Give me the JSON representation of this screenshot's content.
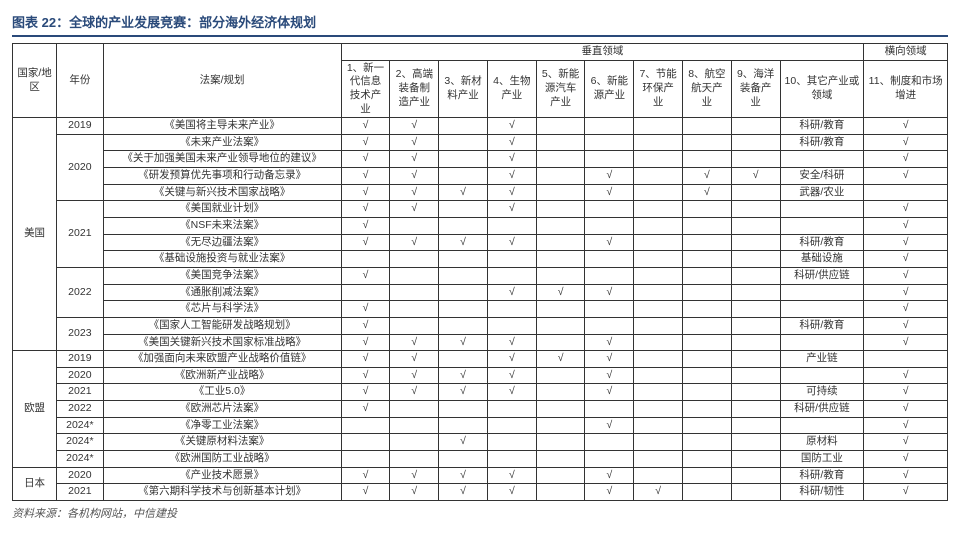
{
  "title": "图表 22：全球的产业发展竞赛：部分海外经济体规划",
  "header": {
    "region": "国家/地区",
    "year": "年份",
    "plan": "法案/规划",
    "vertical": "垂直领域",
    "horizontal": "横向领域",
    "cols": [
      "1、新一代信息技术产业",
      "2、高端装备制造产业",
      "3、新材料产业",
      "4、生物产业",
      "5、新能源汽车产业",
      "6、新能源产业",
      "7、节能环保产业",
      "8、航空航天产业",
      "9、海洋装备产业",
      "10、其它产业或领域",
      "11、制度和市场增进"
    ]
  },
  "check": "√",
  "regions": [
    {
      "name": "美国",
      "years": [
        {
          "year": "2019",
          "rows": [
            {
              "plan": "《美国将主导未来产业》",
              "v": [
                1,
                1,
                0,
                1,
                0,
                0,
                0,
                0,
                0,
                "科研/教育",
                1
              ]
            }
          ]
        },
        {
          "year": "2020",
          "rows": [
            {
              "plan": "《未来产业法案》",
              "v": [
                1,
                1,
                0,
                1,
                0,
                0,
                0,
                0,
                0,
                "科研/教育",
                1
              ]
            },
            {
              "plan": "《关于加强美国未来产业领导地位的建议》",
              "v": [
                1,
                1,
                0,
                1,
                0,
                0,
                0,
                0,
                0,
                "",
                1
              ]
            },
            {
              "plan": "《研发预算优先事项和行动备忘录》",
              "v": [
                1,
                1,
                0,
                1,
                0,
                1,
                0,
                1,
                1,
                "安全/科研",
                1
              ]
            },
            {
              "plan": "《关键与新兴技术国家战略》",
              "v": [
                1,
                1,
                1,
                1,
                0,
                1,
                0,
                1,
                0,
                "武器/农业",
                0
              ]
            }
          ]
        },
        {
          "year": "2021",
          "rows": [
            {
              "plan": "《美国就业计划》",
              "v": [
                1,
                1,
                0,
                1,
                0,
                0,
                0,
                0,
                0,
                "",
                1
              ]
            },
            {
              "plan": "《NSF未来法案》",
              "v": [
                1,
                0,
                0,
                0,
                0,
                0,
                0,
                0,
                0,
                "",
                1
              ]
            },
            {
              "plan": "《无尽边疆法案》",
              "v": [
                1,
                1,
                1,
                1,
                0,
                1,
                0,
                0,
                0,
                "科研/教育",
                1
              ]
            },
            {
              "plan": "《基础设施投资与就业法案》",
              "v": [
                0,
                0,
                0,
                0,
                0,
                0,
                0,
                0,
                0,
                "基础设施",
                1
              ]
            }
          ]
        },
        {
          "year": "2022",
          "rows": [
            {
              "plan": "《美国竞争法案》",
              "v": [
                1,
                0,
                0,
                0,
                0,
                0,
                0,
                0,
                0,
                "科研/供应链",
                1
              ]
            },
            {
              "plan": "《通胀削减法案》",
              "v": [
                0,
                0,
                0,
                1,
                1,
                1,
                0,
                0,
                0,
                "",
                1
              ]
            },
            {
              "plan": "《芯片与科学法》",
              "v": [
                1,
                0,
                0,
                0,
                0,
                0,
                0,
                0,
                0,
                "",
                1
              ]
            }
          ]
        },
        {
          "year": "2023",
          "rows": [
            {
              "plan": "《国家人工智能研发战略规划》",
              "v": [
                1,
                0,
                0,
                0,
                0,
                0,
                0,
                0,
                0,
                "科研/教育",
                1
              ]
            },
            {
              "plan": "《美国关键新兴技术国家标准战略》",
              "v": [
                1,
                1,
                1,
                1,
                0,
                1,
                0,
                0,
                0,
                "",
                1
              ]
            }
          ]
        }
      ]
    },
    {
      "name": "欧盟",
      "years": [
        {
          "year": "2019",
          "rows": [
            {
              "plan": "《加强面向未来欧盟产业战略价值链》",
              "v": [
                1,
                1,
                0,
                1,
                1,
                1,
                0,
                0,
                0,
                "产业链",
                0
              ]
            }
          ]
        },
        {
          "year": "2020",
          "rows": [
            {
              "plan": "《欧洲新产业战略》",
              "v": [
                1,
                1,
                1,
                1,
                0,
                1,
                0,
                0,
                0,
                "",
                1
              ]
            }
          ]
        },
        {
          "year": "2021",
          "rows": [
            {
              "plan": "《工业5.0》",
              "v": [
                1,
                1,
                1,
                1,
                0,
                1,
                0,
                0,
                0,
                "可持续",
                1
              ]
            }
          ]
        },
        {
          "year": "2022",
          "rows": [
            {
              "plan": "《欧洲芯片法案》",
              "v": [
                1,
                0,
                0,
                0,
                0,
                0,
                0,
                0,
                0,
                "科研/供应链",
                1
              ]
            }
          ]
        },
        {
          "year": "2024*",
          "rows": [
            {
              "plan": "《净零工业法案》",
              "v": [
                0,
                0,
                0,
                0,
                0,
                1,
                0,
                0,
                0,
                "",
                1
              ]
            }
          ]
        },
        {
          "year": "2024*",
          "rows": [
            {
              "plan": "《关键原材料法案》",
              "v": [
                0,
                0,
                1,
                0,
                0,
                0,
                0,
                0,
                0,
                "原材料",
                1
              ]
            }
          ]
        },
        {
          "year": "2024*",
          "rows": [
            {
              "plan": "《欧洲国防工业战略》",
              "v": [
                0,
                0,
                0,
                0,
                0,
                0,
                0,
                0,
                0,
                "国防工业",
                1
              ]
            }
          ]
        }
      ]
    },
    {
      "name": "日本",
      "years": [
        {
          "year": "2020",
          "rows": [
            {
              "plan": "《产业技术愿景》",
              "v": [
                1,
                1,
                1,
                1,
                0,
                1,
                0,
                0,
                0,
                "科研/教育",
                1
              ]
            }
          ]
        },
        {
          "year": "2021",
          "rows": [
            {
              "plan": "《第六期科学技术与创新基本计划》",
              "v": [
                1,
                1,
                1,
                1,
                0,
                1,
                1,
                0,
                0,
                "科研/韧性",
                1
              ]
            }
          ]
        }
      ]
    }
  ],
  "footnote": "资料来源：各机构网站，中信建投",
  "styling": {
    "title_color": "#2a4a7a",
    "border_color": "#333333",
    "font_family": "Microsoft YaHei",
    "title_fontsize": 13,
    "cell_fontsize": 10.5,
    "background": "#ffffff"
  }
}
